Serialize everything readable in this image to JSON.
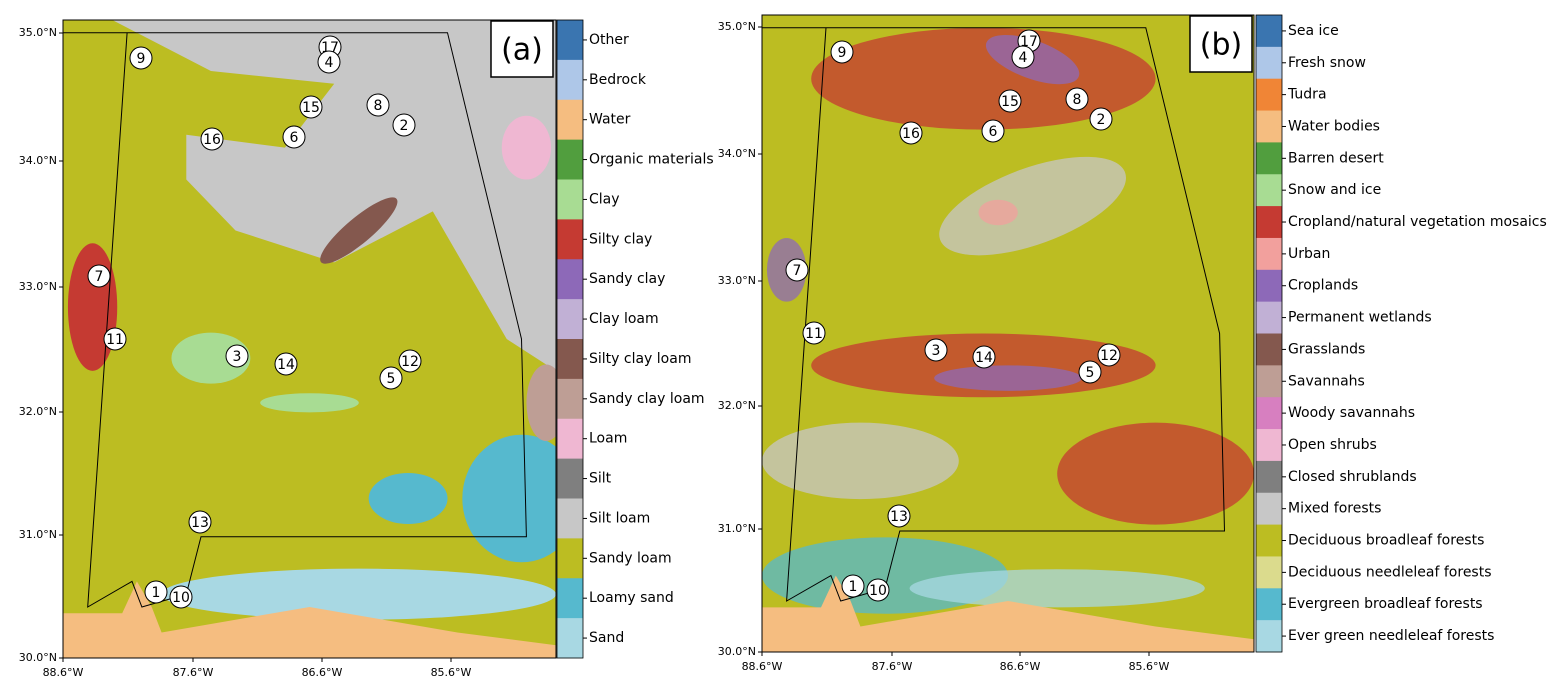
{
  "panels": [
    {
      "label": "(a)",
      "lat_ticks": [
        "35.0°N",
        "34.0°N",
        "33.0°N",
        "32.0°N",
        "31.0°N",
        "30.0°N"
      ],
      "lon_ticks": [
        "88.6°W",
        "87.6°W",
        "86.6°W",
        "85.6°W"
      ],
      "legend": [
        {
          "name": "Other",
          "color": "#3a75b0"
        },
        {
          "name": "Bedrock",
          "color": "#aec7e8"
        },
        {
          "name": "Water",
          "color": "#f5bd80"
        },
        {
          "name": "Organic materials",
          "color": "#519e3e"
        },
        {
          "name": "Clay",
          "color": "#a8dc93"
        },
        {
          "name": "Silty clay",
          "color": "#c53a32"
        },
        {
          "name": "Sandy clay",
          "color": "#8d69b8"
        },
        {
          "name": "Clay loam",
          "color": "#c1b0d5"
        },
        {
          "name": "Silty clay loam",
          "color": "#84584e"
        },
        {
          "name": "Sandy clay loam",
          "color": "#be9e95"
        },
        {
          "name": "Loam",
          "color": "#efb7d2"
        },
        {
          "name": "Silt",
          "color": "#7f7f7f"
        },
        {
          "name": "Silt loam",
          "color": "#c7c7c7"
        },
        {
          "name": "Sandy loam",
          "color": "#bcbd22"
        },
        {
          "name": "Loamy sand",
          "color": "#56b9ce"
        },
        {
          "name": "Sand",
          "color": "#a8d8e3"
        }
      ],
      "sites": [
        "9",
        "17",
        "4",
        "15",
        "8",
        "2",
        "16",
        "6",
        "7",
        "11",
        "3",
        "14",
        "12",
        "5",
        "13",
        "1",
        "10"
      ]
    },
    {
      "label": "(b)",
      "lat_ticks": [
        "35.0°N",
        "34.0°N",
        "33.0°N",
        "32.0°N",
        "31.0°N",
        "30.0°N"
      ],
      "lon_ticks": [
        "88.6°W",
        "87.6°W",
        "86.6°W",
        "85.6°W"
      ],
      "legend": [
        {
          "name": "Sea ice",
          "color": "#3a75b0"
        },
        {
          "name": "Fresh snow",
          "color": "#aec7e8"
        },
        {
          "name": "Tudra",
          "color": "#f08536"
        },
        {
          "name": "Water bodies",
          "color": "#f5bd80"
        },
        {
          "name": "Barren desert",
          "color": "#519e3e"
        },
        {
          "name": "Snow and ice",
          "color": "#a8dc93"
        },
        {
          "name": "Cropland/natural vegetation mosaics",
          "color": "#c53a32"
        },
        {
          "name": "Urban",
          "color": "#f2a09d"
        },
        {
          "name": "Croplands",
          "color": "#8d69b8"
        },
        {
          "name": "Permanent wetlands",
          "color": "#c1b0d5"
        },
        {
          "name": "Grasslands",
          "color": "#84584e"
        },
        {
          "name": "Savannahs",
          "color": "#be9e95"
        },
        {
          "name": "Woody savannahs",
          "color": "#d77fc0"
        },
        {
          "name": "Open shrubs",
          "color": "#efb7d2"
        },
        {
          "name": "Closed shrublands",
          "color": "#7f7f7f"
        },
        {
          "name": "Mixed forests",
          "color": "#c7c7c7"
        },
        {
          "name": "Deciduous broadleaf forests",
          "color": "#bcbd22"
        },
        {
          "name": "Deciduous needleleaf forests",
          "color": "#dbdb8d"
        },
        {
          "name": "Evergreen broadleaf forests",
          "color": "#56b9ce"
        },
        {
          "name": "Ever green needleleaf forests",
          "color": "#a8d8e3"
        }
      ],
      "sites": [
        "9",
        "17",
        "4",
        "15",
        "8",
        "2",
        "16",
        "6",
        "7",
        "11",
        "3",
        "14",
        "12",
        "5",
        "13",
        "1",
        "10"
      ]
    }
  ]
}
